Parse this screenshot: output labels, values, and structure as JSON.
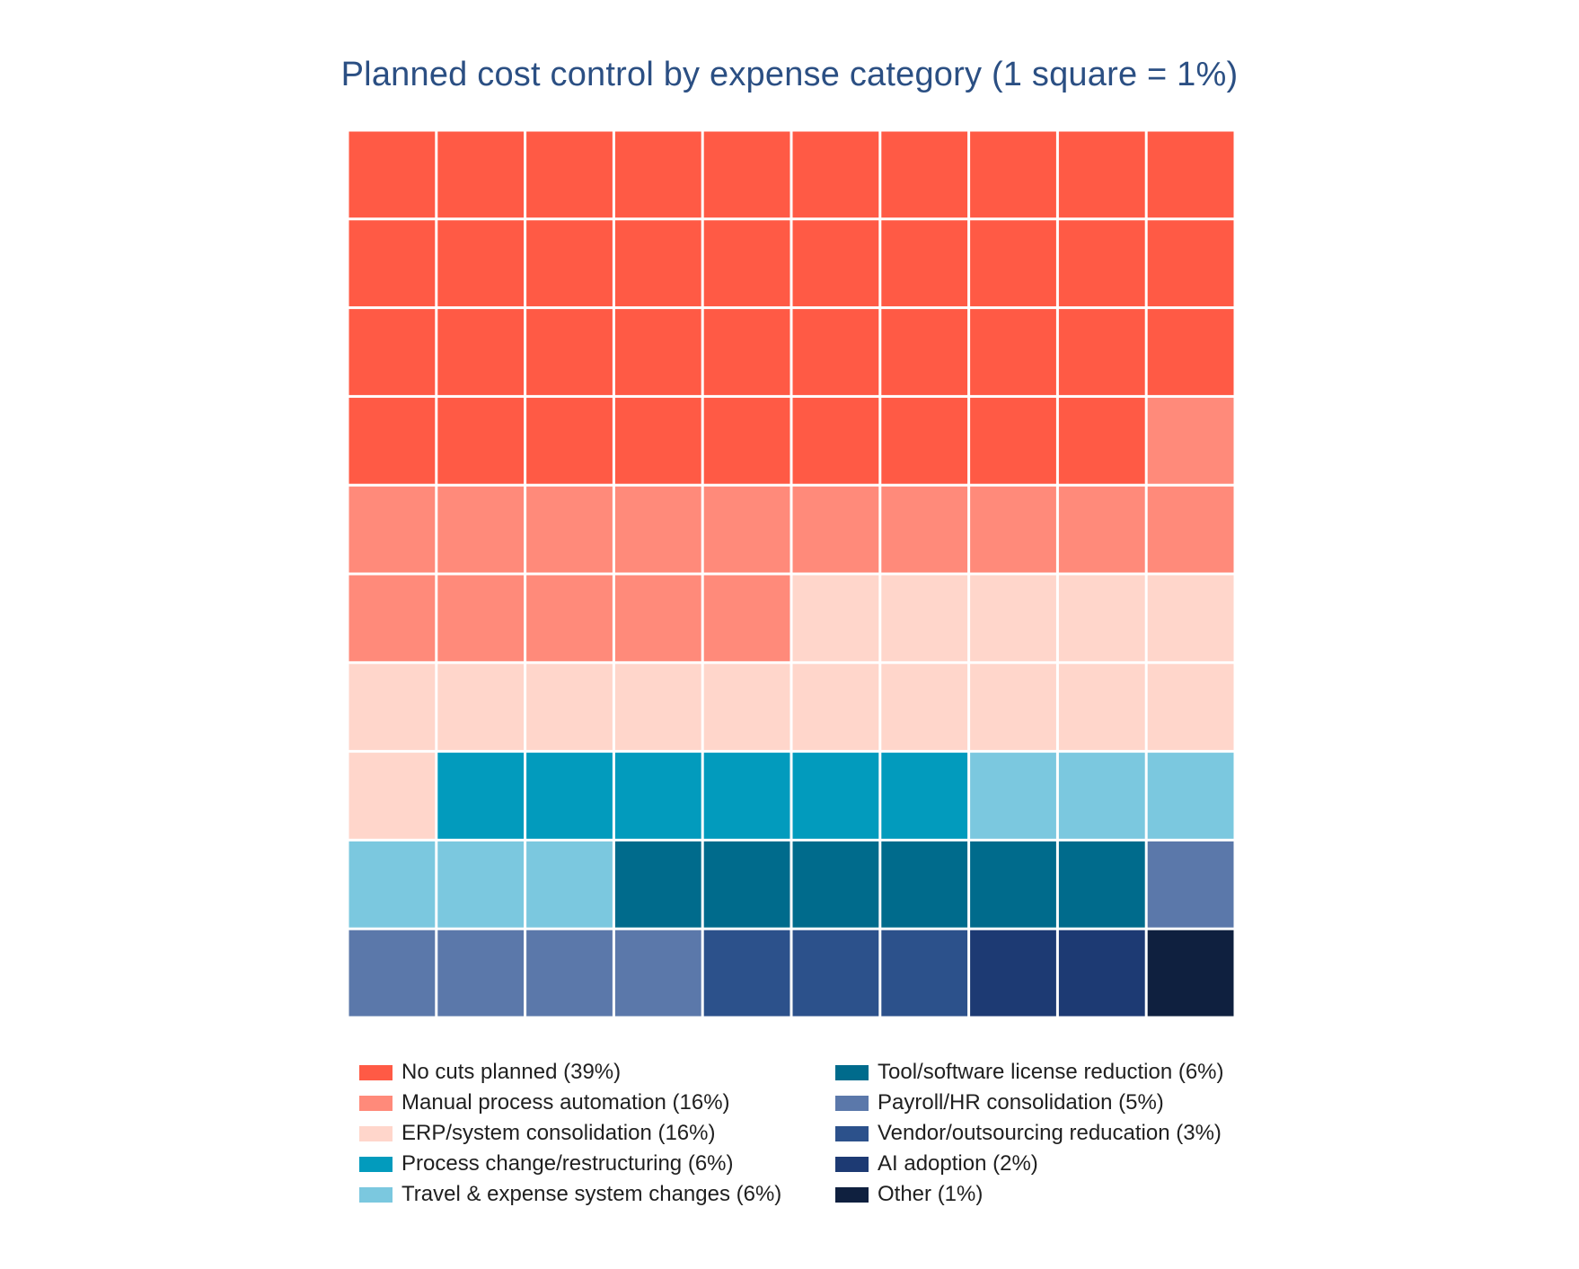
{
  "chart_data": {
    "type": "waffle",
    "title": "Planned cost control by expense category (1 square = 1%)",
    "grid": {
      "rows": 10,
      "columns": 10,
      "unit": "1 square = 1%"
    },
    "fill_order": "row-major from top-left",
    "series": [
      {
        "name": "No cuts planned",
        "value": 39,
        "label": "No cuts planned (39%)",
        "color": "#ff5a45"
      },
      {
        "name": "Manual process automation",
        "value": 16,
        "label": "Manual process automation (16%)",
        "color": "#ff8a7a"
      },
      {
        "name": "ERP/system consolidation",
        "value": 16,
        "label": "ERP/system consolidation (16%)",
        "color": "#ffd6cb"
      },
      {
        "name": "Process change/restructuring",
        "value": 6,
        "label": "Process change/restructuring (6%)",
        "color": "#029bbd"
      },
      {
        "name": "Travel & expense system changes",
        "value": 6,
        "label": "Travel & expense system changes (6%)",
        "color": "#7bc8df"
      },
      {
        "name": "Tool/software license reduction",
        "value": 6,
        "label": "Tool/software license reduction (6%)",
        "color": "#006b8c"
      },
      {
        "name": "Payroll/HR consolidation",
        "value": 5,
        "label": "Payroll/HR consolidation (5%)",
        "color": "#5b78aa"
      },
      {
        "name": "Vendor/outsourcing reducation",
        "value": 3,
        "label": "Vendor/outsourcing reducation (3%)",
        "color": "#2c518b"
      },
      {
        "name": "AI adoption",
        "value": 2,
        "label": "AI adoption (2%)",
        "color": "#1d3a73"
      },
      {
        "name": "Other",
        "value": 1,
        "label": "Other (1%)",
        "color": "#0f203f"
      }
    ],
    "legend": {
      "position": "bottom",
      "columns": 2
    }
  }
}
